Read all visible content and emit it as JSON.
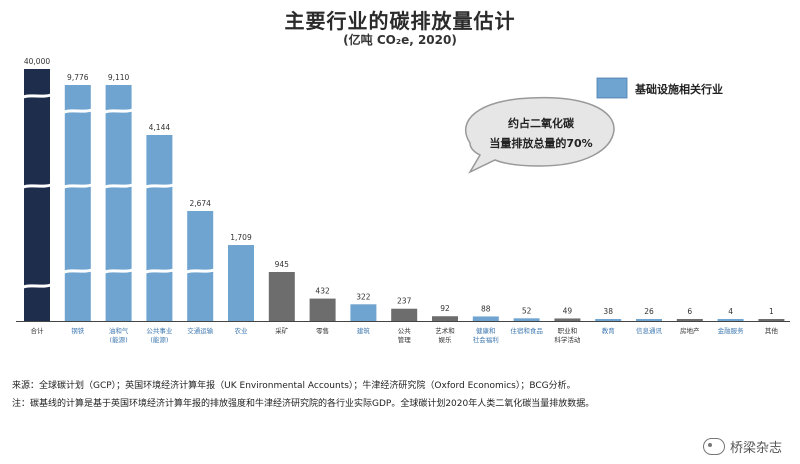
{
  "title": "主要行业的碳排放量估计",
  "subtitle": "(亿吨 CO₂e, 2020)",
  "legend": {
    "label": "基础设施相关行业",
    "color": "#6fa3d0"
  },
  "callout": {
    "line1": "约占二氧化碳",
    "line2": "当量排放总量的70%"
  },
  "colors": {
    "total": "#1f2d4d",
    "infrastructure": "#6fa3d0",
    "other": "#6d6d6d"
  },
  "chart_data": {
    "type": "bar",
    "title": "主要行业的碳排放量估计",
    "subtitle": "(亿吨 CO₂e, 2020)",
    "axis_break": true,
    "categories": [
      "合计",
      "钢铁",
      "油和气(能源)",
      "公共事业(能源)",
      "交通运输",
      "农业",
      "采矿",
      "零售",
      "建筑",
      "公共管理",
      "艺术和娱乐",
      "健康和社会福利",
      "住宿和食品",
      "职业和科学活动",
      "教育",
      "信息通讯",
      "房地产",
      "金融服务",
      "其他"
    ],
    "labels": [
      "40,000",
      "9,776",
      "9,110",
      "4,144",
      "2,674",
      "1,709",
      "945",
      "432",
      "322",
      "237",
      "92",
      "88",
      "52",
      "49",
      "38",
      "26",
      "6",
      "4",
      "1"
    ],
    "values": [
      40000,
      9776,
      9110,
      4144,
      2674,
      1709,
      945,
      432,
      322,
      237,
      92,
      88,
      52,
      49,
      38,
      26,
      6,
      4,
      1
    ],
    "groups": [
      "total",
      "infrastructure",
      "infrastructure",
      "infrastructure",
      "infrastructure",
      "infrastructure",
      "other",
      "other",
      "infrastructure",
      "other",
      "other",
      "infrastructure",
      "infrastructure",
      "other",
      "infrastructure",
      "infrastructure",
      "other",
      "infrastructure",
      "other"
    ],
    "category_lines": [
      [
        "合计"
      ],
      [
        "钢铁"
      ],
      [
        "油和气",
        "(能源)"
      ],
      [
        "公共事业",
        "(能源)"
      ],
      [
        "交通运输"
      ],
      [
        "农业"
      ],
      [
        "采矿"
      ],
      [
        "零售"
      ],
      [
        "建筑"
      ],
      [
        "公共",
        "管理"
      ],
      [
        "艺术和",
        "娱乐"
      ],
      [
        "健康和",
        "社会福利"
      ],
      [
        "住宿和食品"
      ],
      [
        "职业和",
        "科学活动"
      ],
      [
        "教育"
      ],
      [
        "信息通讯"
      ],
      [
        "房地产"
      ],
      [
        "金融服务"
      ],
      [
        "其他"
      ]
    ],
    "legend": [
      "基础设施相关行业"
    ]
  },
  "notes": {
    "source": "来源：全球碳计划（GCP）；英国环境经济计算年报（UK Environmental Accounts）；牛津经济研究院（Oxford Economics）；BCG分析。",
    "note": "注：碳基线的计算是基于英国环境经济计算年报的排放强度和牛津经济研究院的各行业实际GDP。全球碳计划2020年人类二氧化碳当量排放数据。"
  },
  "watermark": "桥梁杂志"
}
